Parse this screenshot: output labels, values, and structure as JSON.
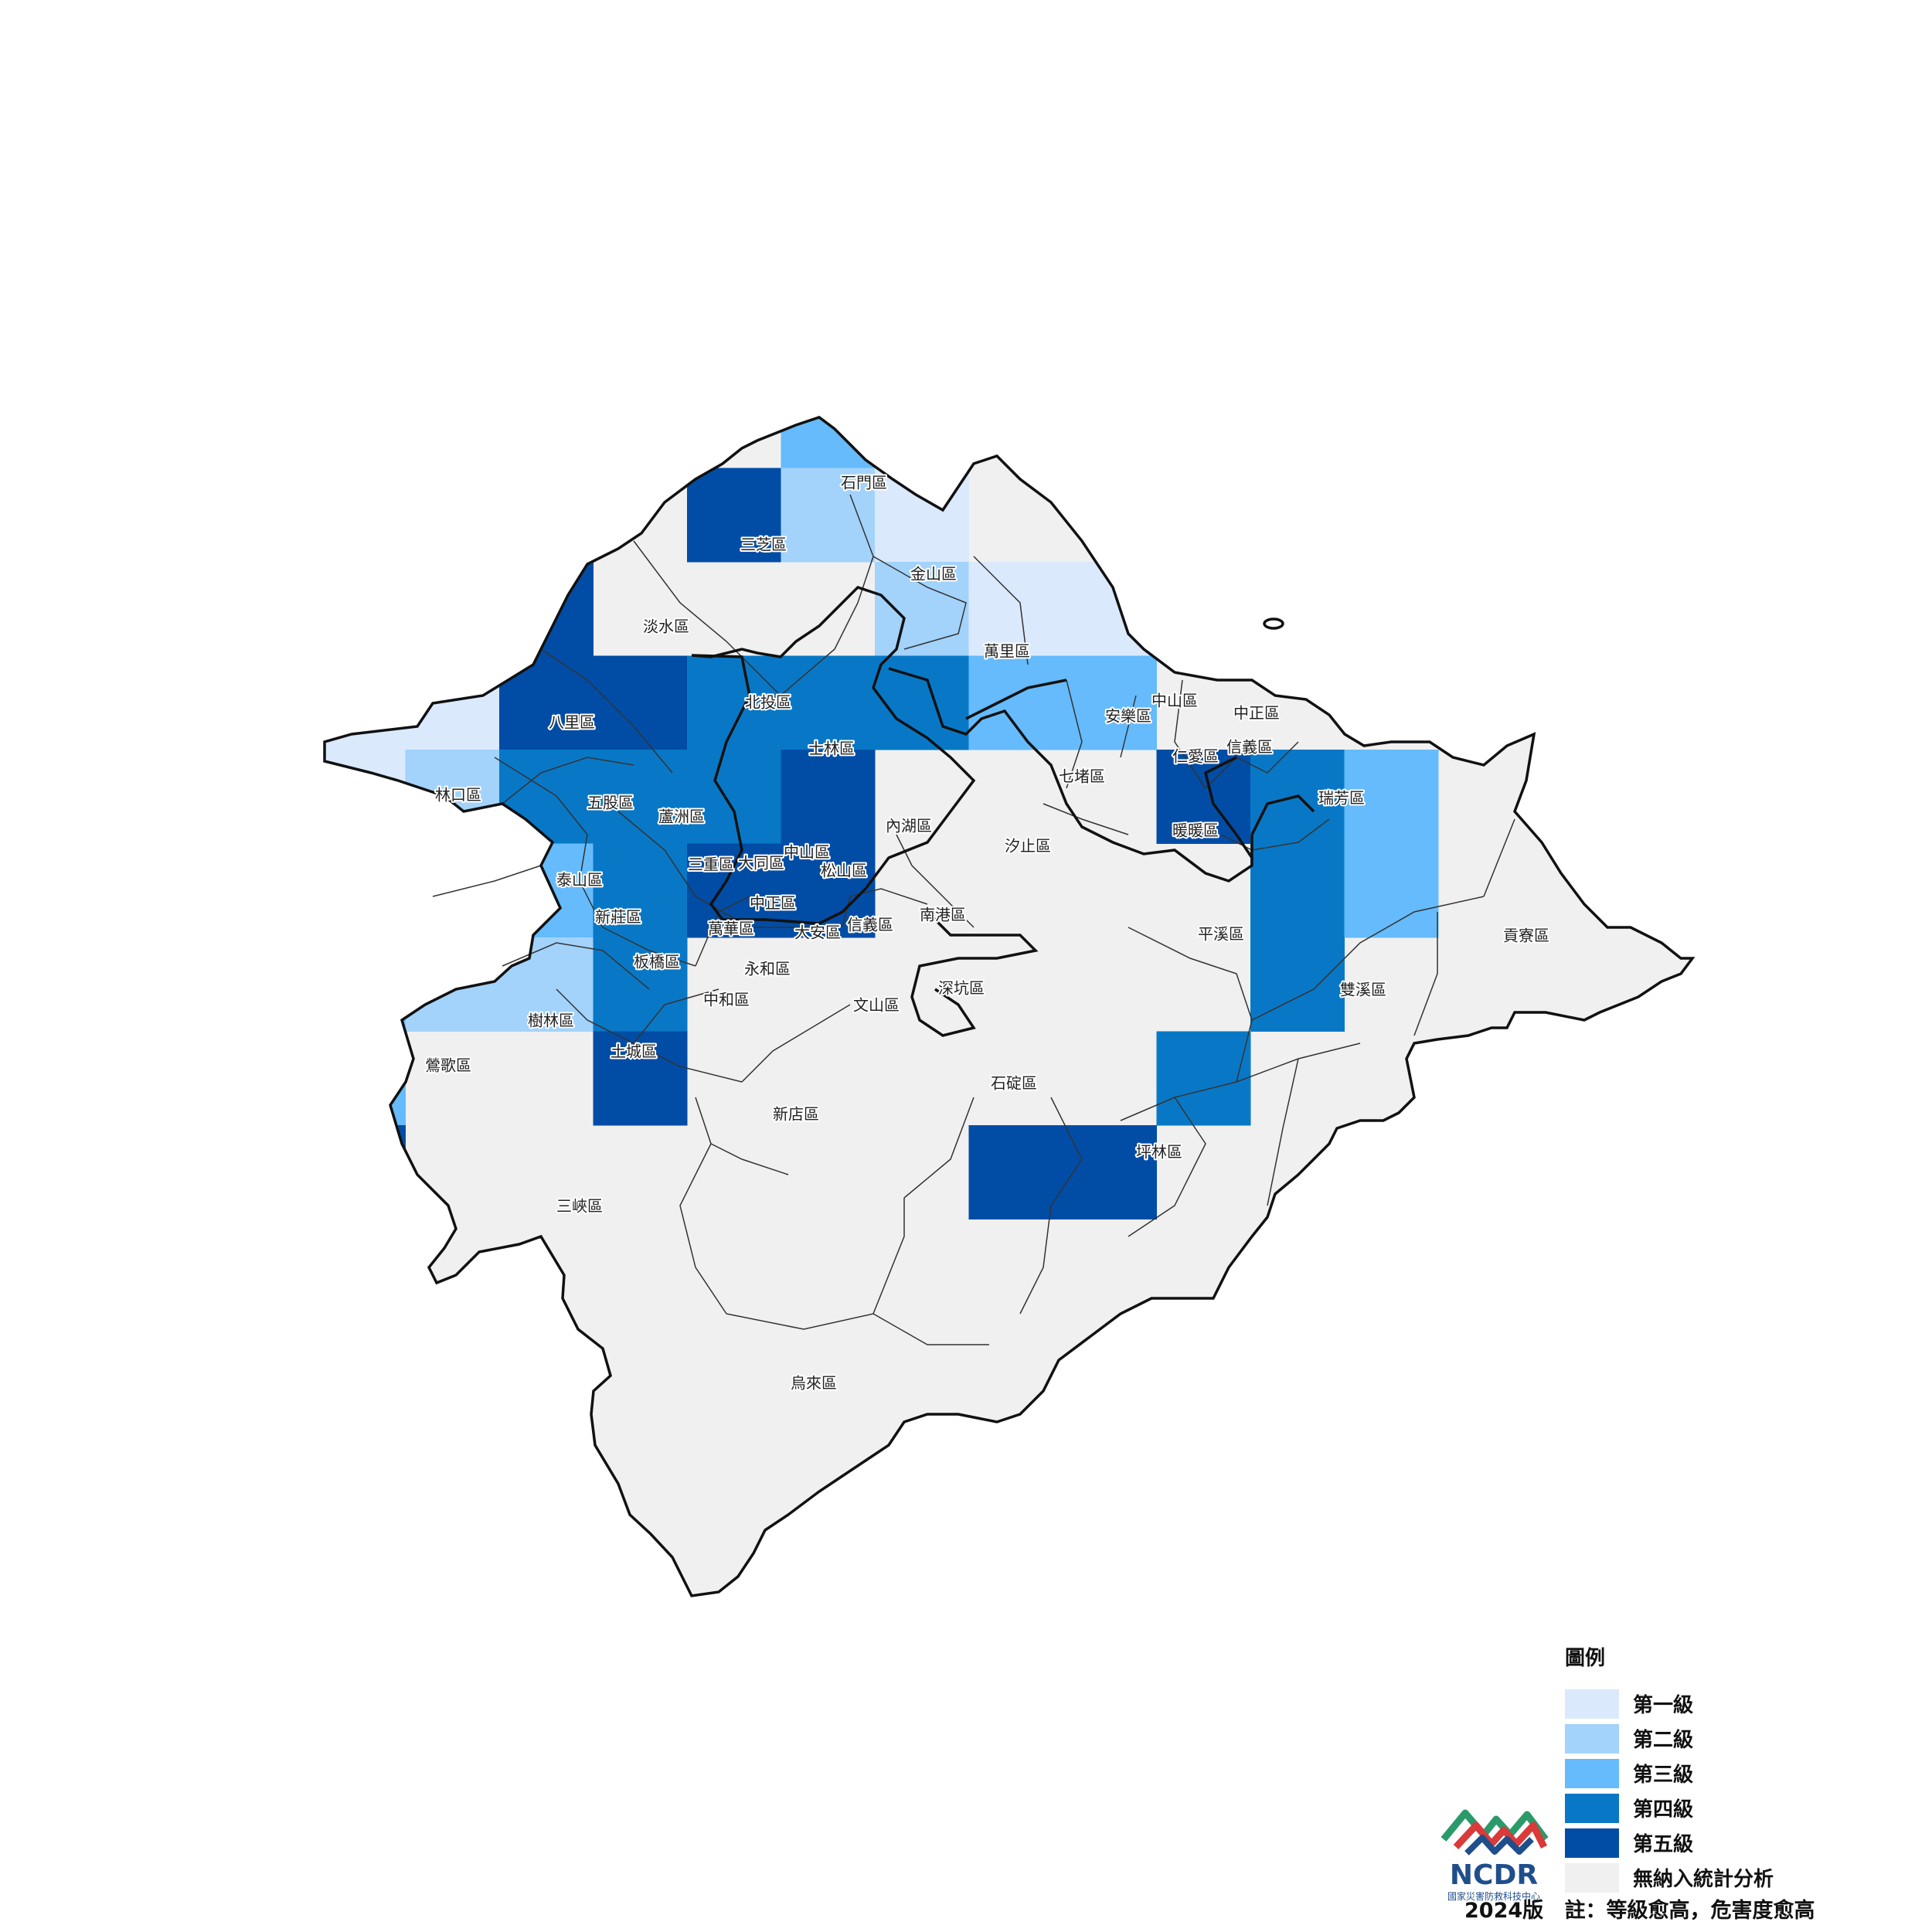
{
  "colors": {
    "level1": "#dbe9fd",
    "level2": "#a3d3fb",
    "level3": "#65bbfb",
    "level4": "#0878c6",
    "level5": "#014da6",
    "none": "#f0f0f0",
    "boundary": "#111111"
  },
  "legend": {
    "title": "圖例",
    "items": [
      {
        "key": "level1",
        "label": "第一級"
      },
      {
        "key": "level2",
        "label": "第二級"
      },
      {
        "key": "level3",
        "label": "第三級"
      },
      {
        "key": "level4",
        "label": "第四級"
      },
      {
        "key": "level5",
        "label": "第五級"
      },
      {
        "key": "none",
        "label": "無納入統計分析"
      }
    ]
  },
  "districts": [
    "石門區",
    "三芝區",
    "金山區",
    "淡水區",
    "萬里區",
    "北投區",
    "八里區",
    "士林區",
    "安樂區",
    "中山區",
    "中正區",
    "仁愛區",
    "信義區",
    "林口區",
    "五股區",
    "蘆洲區",
    "內湖區",
    "七堵區",
    "瑞芳區",
    "暖暖區",
    "汐止區",
    "三重區",
    "大同區",
    "中山區",
    "松山區",
    "泰山區",
    "新莊區",
    "中正區",
    "萬華區",
    "大安區",
    "信義區",
    "南港區",
    "平溪區",
    "貢寮區",
    "板橋區",
    "永和區",
    "深坑區",
    "雙溪區",
    "中和區",
    "文山區",
    "樹林區",
    "土城區",
    "鶯歌區",
    "石碇區",
    "新店區",
    "坪林區",
    "三峽區",
    "烏來區"
  ],
  "logo": {
    "name": "NCDR",
    "subtitle": "國家災害防救科技中心"
  },
  "footer": {
    "version": "2024版",
    "note": "註：等級愈高，危害度愈高"
  }
}
